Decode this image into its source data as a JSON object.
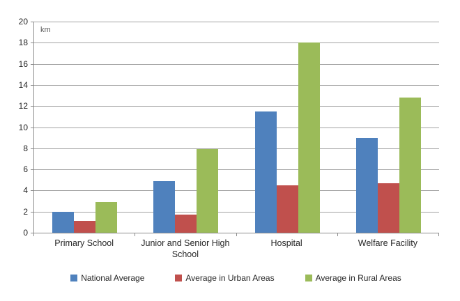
{
  "chart_data": {
    "type": "bar",
    "title": "",
    "unit_label": "km",
    "categories": [
      "Primary School",
      "Junior and Senior High School",
      "Hospital",
      "Welfare Facility"
    ],
    "series": [
      {
        "name": "National Average",
        "color": "#4F81BD",
        "values": [
          2.0,
          4.9,
          11.5,
          9.0
        ]
      },
      {
        "name": "Average in Urban Areas",
        "color": "#C0504D",
        "values": [
          1.1,
          1.7,
          4.5,
          4.7
        ]
      },
      {
        "name": "Average in Rural Areas",
        "color": "#9BBB59",
        "values": [
          2.9,
          7.9,
          18.0,
          12.8
        ]
      }
    ],
    "ylim": [
      0,
      20
    ],
    "yticks": [
      0,
      2,
      4,
      6,
      8,
      10,
      12,
      14,
      16,
      18,
      20
    ],
    "grid": true,
    "legend_position": "bottom"
  },
  "colors": {
    "gridline": "#a3a3a3",
    "axis": "#8c8c8c",
    "tick_text": "#262626",
    "unit_text": "#595959",
    "background": "#ffffff"
  }
}
